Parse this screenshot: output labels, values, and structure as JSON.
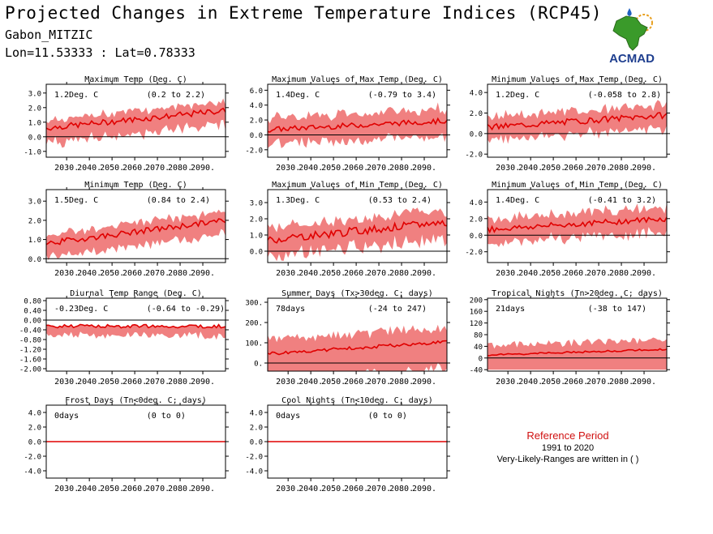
{
  "header": {
    "title": "Projected Changes in Extreme Temperature Indices (RCP45)",
    "subtitle": "Gabon_MITZIC",
    "coords": "Lon=11.53333 : Lat=0.78333"
  },
  "logo": {
    "text": "ACMAD",
    "icon": "africa-map-icon",
    "colors": {
      "continent": "#3a9a2a",
      "text": "#1f3f8f",
      "drop": "#2060c0",
      "sun": "#e8a020"
    }
  },
  "reference": {
    "title": "Reference Period",
    "years": "1991 to 2020",
    "note": "Very-Likely-Ranges are written in ( )"
  },
  "colors": {
    "band": "#f08080",
    "line": "#e00000",
    "zero": "#000000"
  },
  "chart_data": [
    {
      "type": "area",
      "title": "Maximum Temp (Deg. C)",
      "value_text": "1.2Deg. C",
      "range_text": "(0.2 to 2.2)",
      "ylim": [
        -1.4,
        3.6
      ],
      "yticks": [
        "3.0",
        "2.0",
        "1.0",
        "0.0",
        "-1.0"
      ],
      "ytick_values": [
        3,
        2,
        1,
        0,
        -1
      ],
      "trend": [
        0.6,
        1.8
      ],
      "band": [
        0.7,
        1.2
      ],
      "wiggle": 0.2
    },
    {
      "type": "area",
      "title": "Maximum Values of Max Temp (Deg. C)",
      "value_text": "1.4Deg. C",
      "range_text": "(-0.79 to 3.4)",
      "ylim": [
        -3.0,
        6.8
      ],
      "yticks": [
        "6.0",
        "4.0",
        "2.0",
        "0.0",
        "-2.0"
      ],
      "ytick_values": [
        6,
        4,
        2,
        0,
        -2
      ],
      "trend": [
        0.7,
        1.9
      ],
      "band": [
        2.0,
        2.4
      ],
      "wiggle": 0.35
    },
    {
      "type": "area",
      "title": "Minimum Values of Max Temp (Deg. C)",
      "value_text": "1.2Deg. C",
      "range_text": "(-0.058 to 2.8)",
      "ylim": [
        -2.3,
        4.8
      ],
      "yticks": [
        "4.0",
        "2.0",
        "0.0",
        "-2.0"
      ],
      "ytick_values": [
        4,
        2,
        0,
        -2
      ],
      "trend": [
        0.6,
        1.8
      ],
      "band": [
        1.2,
        1.5
      ],
      "wiggle": 0.3
    },
    {
      "type": "area",
      "title": "Minimum Temp (Deg. C)",
      "value_text": "1.5Deg. C",
      "range_text": "(0.84 to 2.4)",
      "ylim": [
        -0.2,
        3.6
      ],
      "yticks": [
        "3.0",
        "2.0",
        "1.0",
        "0.0"
      ],
      "ytick_values": [
        3,
        2,
        1,
        0
      ],
      "trend": [
        0.8,
        2.0
      ],
      "band": [
        0.55,
        0.85
      ],
      "wiggle": 0.15
    },
    {
      "type": "area",
      "title": "Maximum Values of Min Temp (Deg. C)",
      "value_text": "1.3Deg. C",
      "range_text": "(0.53 to 2.4)",
      "ylim": [
        -0.7,
        3.8
      ],
      "yticks": [
        "3.0",
        "2.0",
        "1.0",
        "0.0"
      ],
      "ytick_values": [
        3,
        2,
        1,
        0
      ],
      "trend": [
        0.7,
        1.8
      ],
      "band": [
        0.9,
        1.2
      ],
      "wiggle": 0.25
    },
    {
      "type": "area",
      "title": "Minimum Values of Min Temp (Deg. C)",
      "value_text": "1.4Deg. C",
      "range_text": "(-0.41 to 3.2)",
      "ylim": [
        -3.3,
        5.5
      ],
      "yticks": [
        "4.0",
        "2.0",
        "0.0",
        "-2.0"
      ],
      "ytick_values": [
        4,
        2,
        0,
        -2
      ],
      "trend": [
        0.7,
        2.0
      ],
      "band": [
        1.6,
        2.0
      ],
      "wiggle": 0.35
    },
    {
      "type": "area",
      "title": "Diurnal Temp Range (Deg. C)",
      "value_text": "-0.23Deg. C",
      "range_text": "(-0.64 to -0.29)",
      "ylim": [
        -2.1,
        0.9
      ],
      "yticks": [
        "0.80",
        "0.40",
        "0.00",
        "-0.40",
        "-0.80",
        "-1.20",
        "-1.60",
        "-2.00"
      ],
      "ytick_values": [
        0.8,
        0.4,
        0,
        -0.4,
        -0.8,
        -1.2,
        -1.6,
        -2.0
      ],
      "trend": [
        -0.25,
        -0.25
      ],
      "band": [
        0.4,
        0.45
      ],
      "wiggle": 0.07,
      "lower_only": true
    },
    {
      "type": "area",
      "title": "Summer Days (Tx>30deg. C; days)",
      "value_text": "78days",
      "range_text": "(-24 to 247)",
      "ylim": [
        -40,
        320
      ],
      "yticks": [
        "300.",
        "200.",
        "100.",
        "0."
      ],
      "ytick_values": [
        300,
        200,
        100,
        0
      ],
      "trend": [
        45,
        105
      ],
      "band": [
        85,
        190
      ],
      "wiggle": 8
    },
    {
      "type": "area",
      "title": "Tropical Nights (Tn>20deg. C; days)",
      "value_text": "21days",
      "range_text": "(-38 to 147)",
      "ylim": [
        -45,
        205
      ],
      "yticks": [
        "200",
        "160",
        "120",
        "80",
        "40",
        "0",
        "-40"
      ],
      "ytick_values": [
        200,
        160,
        120,
        80,
        40,
        0,
        -40
      ],
      "trend": [
        10,
        30
      ],
      "band": [
        40,
        160
      ],
      "wiggle": 3,
      "clip_low": -40
    },
    {
      "type": "line",
      "title": "Frost Days (Tn<0deg. C; days)",
      "value_text": "0days",
      "range_text": "(0 to 0)",
      "ylim": [
        -5,
        5
      ],
      "yticks": [
        "4.0",
        "2.0",
        "0.0",
        "-2.0",
        "-4.0"
      ],
      "ytick_values": [
        4,
        2,
        0,
        -2,
        -4
      ],
      "trend": [
        0,
        0
      ],
      "band": [
        0,
        0
      ],
      "wiggle": 0
    },
    {
      "type": "line",
      "title": "Cool Nights (Tn<10deg. C; days)",
      "value_text": "0days",
      "range_text": "(0 to 0)",
      "ylim": [
        -5,
        5
      ],
      "yticks": [
        "4.0",
        "2.0",
        "0.0",
        "-2.0",
        "-4.0"
      ],
      "ytick_values": [
        4,
        2,
        0,
        -2,
        -4
      ],
      "trend": [
        0,
        0
      ],
      "band": [
        0,
        0
      ],
      "wiggle": 0
    }
  ],
  "x_axis": {
    "start": 2021,
    "end": 2100,
    "ticks": [
      "2030.",
      "2040.",
      "2050.",
      "2060.",
      "2070.",
      "2080.",
      "2090."
    ],
    "tick_values": [
      2030,
      2040,
      2050,
      2060,
      2070,
      2080,
      2090
    ]
  }
}
